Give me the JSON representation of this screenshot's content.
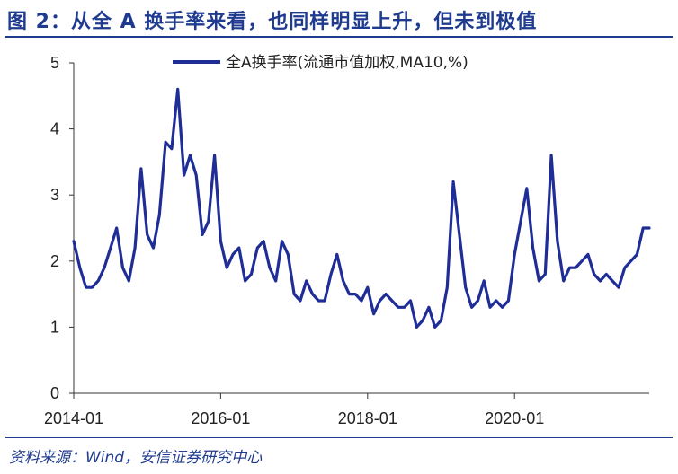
{
  "title": "图 2：从全 A 换手率来看，也同样明显上升，但未到极值",
  "source": "资料来源：Wind，安信证券研究中心",
  "colors": {
    "series": "#1f2d96",
    "accent": "#1f3b8f"
  },
  "chart_data": {
    "type": "line",
    "x_type": "date",
    "xlim": [
      "2014-01",
      "2021-11"
    ],
    "ylim": [
      0,
      5
    ],
    "y_ticks": [
      0,
      1,
      2,
      3,
      4,
      5
    ],
    "x_ticks": [
      "2014-01",
      "2016-01",
      "2018-01",
      "2020-01"
    ],
    "grid": false,
    "legend_position": "top-center",
    "series": [
      {
        "name": "全A换手率(流通市值加权,MA10,%)",
        "color": "#1f2d96",
        "x": [
          "2014-01",
          "2014-02",
          "2014-03",
          "2014-04",
          "2014-05",
          "2014-06",
          "2014-07",
          "2014-08",
          "2014-09",
          "2014-10",
          "2014-11",
          "2014-12",
          "2015-01",
          "2015-02",
          "2015-03",
          "2015-04",
          "2015-05",
          "2015-06",
          "2015-07",
          "2015-08",
          "2015-09",
          "2015-10",
          "2015-11",
          "2015-12",
          "2016-01",
          "2016-02",
          "2016-03",
          "2016-04",
          "2016-05",
          "2016-06",
          "2016-07",
          "2016-08",
          "2016-09",
          "2016-10",
          "2016-11",
          "2016-12",
          "2017-01",
          "2017-02",
          "2017-03",
          "2017-04",
          "2017-05",
          "2017-06",
          "2017-07",
          "2017-08",
          "2017-09",
          "2017-10",
          "2017-11",
          "2017-12",
          "2018-01",
          "2018-02",
          "2018-03",
          "2018-04",
          "2018-05",
          "2018-06",
          "2018-07",
          "2018-08",
          "2018-09",
          "2018-10",
          "2018-11",
          "2018-12",
          "2019-01",
          "2019-02",
          "2019-03",
          "2019-04",
          "2019-05",
          "2019-06",
          "2019-07",
          "2019-08",
          "2019-09",
          "2019-10",
          "2019-11",
          "2019-12",
          "2020-01",
          "2020-02",
          "2020-03",
          "2020-04",
          "2020-05",
          "2020-06",
          "2020-07",
          "2020-08",
          "2020-09",
          "2020-10",
          "2020-11",
          "2020-12",
          "2021-01",
          "2021-02",
          "2021-03",
          "2021-04",
          "2021-05",
          "2021-06",
          "2021-07",
          "2021-08",
          "2021-09",
          "2021-10",
          "2021-11"
        ],
        "values": [
          2.3,
          1.9,
          1.6,
          1.6,
          1.7,
          1.9,
          2.2,
          2.5,
          1.9,
          1.7,
          2.2,
          3.4,
          2.4,
          2.2,
          2.7,
          3.8,
          3.7,
          4.6,
          3.3,
          3.6,
          3.3,
          2.4,
          2.6,
          3.6,
          2.3,
          1.9,
          2.1,
          2.2,
          1.7,
          1.8,
          2.2,
          2.3,
          1.9,
          1.7,
          2.3,
          2.1,
          1.5,
          1.4,
          1.7,
          1.5,
          1.4,
          1.4,
          1.8,
          2.1,
          1.7,
          1.5,
          1.5,
          1.4,
          1.6,
          1.2,
          1.4,
          1.5,
          1.4,
          1.3,
          1.3,
          1.4,
          1.0,
          1.1,
          1.3,
          1.0,
          1.1,
          1.6,
          3.2,
          2.4,
          1.6,
          1.3,
          1.4,
          1.7,
          1.3,
          1.4,
          1.3,
          1.4,
          2.1,
          2.6,
          3.1,
          2.2,
          1.7,
          1.8,
          3.6,
          2.3,
          1.7,
          1.9,
          1.9,
          2.0,
          2.1,
          1.8,
          1.7,
          1.8,
          1.7,
          1.6,
          1.9,
          2.0,
          2.1,
          2.5,
          2.5
        ]
      }
    ]
  }
}
